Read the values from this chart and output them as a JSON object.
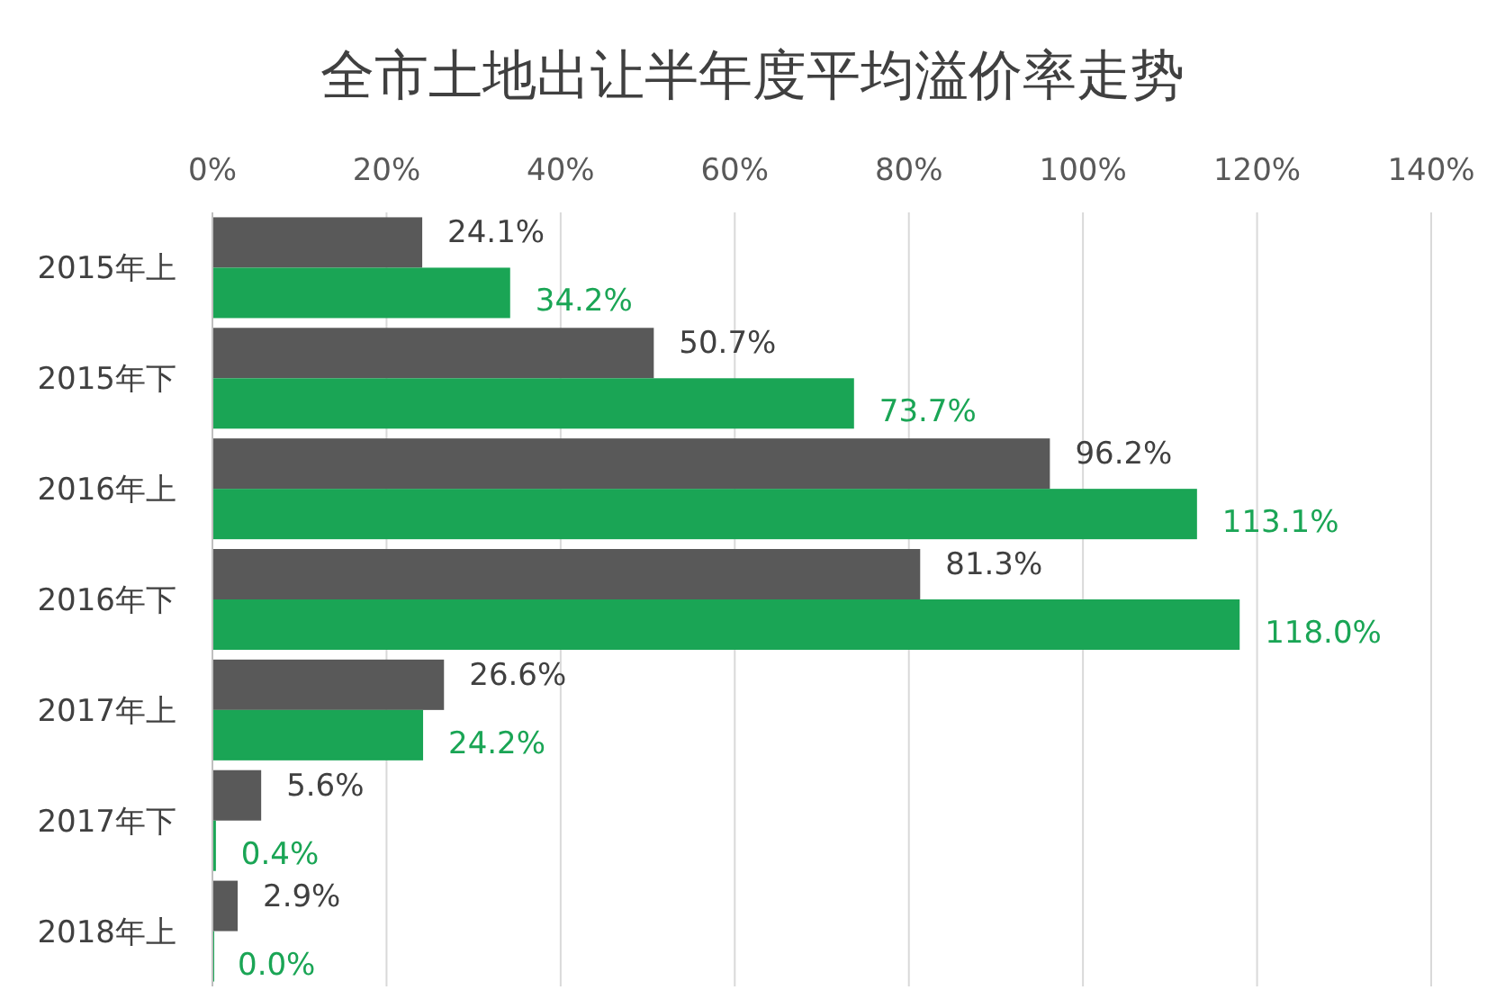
{
  "chart_data": {
    "type": "bar",
    "orientation": "horizontal",
    "title": "全市土地出让半年度平均溢价率走势",
    "categories": [
      "2015年上",
      "2015年下",
      "2016年上",
      "2016年下",
      "2017年上",
      "2017年下",
      "2018年上"
    ],
    "series": [
      {
        "color": "#595959",
        "values": [
          24.1,
          50.7,
          96.2,
          81.3,
          26.6,
          5.6,
          2.9
        ],
        "value_labels": [
          "24.1%",
          "50.7%",
          "96.2%",
          "81.3%",
          "26.6%",
          "5.6%",
          "2.9%"
        ]
      },
      {
        "color": "#1aa555",
        "values": [
          34.2,
          73.7,
          113.1,
          118.0,
          24.2,
          0.4,
          0.0
        ],
        "value_labels": [
          "34.2%",
          "73.7%",
          "113.1%",
          "118.0%",
          "24.2%",
          "0.4%",
          "0.0%"
        ]
      }
    ],
    "xlim": [
      0,
      140
    ],
    "xticks": [
      {
        "value": 0,
        "label": "0%"
      },
      {
        "value": 20,
        "label": "20%"
      },
      {
        "value": 40,
        "label": "40%"
      },
      {
        "value": 60,
        "label": "60%"
      },
      {
        "value": 80,
        "label": "80%"
      },
      {
        "value": 100,
        "label": "100%"
      },
      {
        "value": 120,
        "label": "120%"
      },
      {
        "value": 140,
        "label": "140%"
      }
    ],
    "grid": "x"
  }
}
